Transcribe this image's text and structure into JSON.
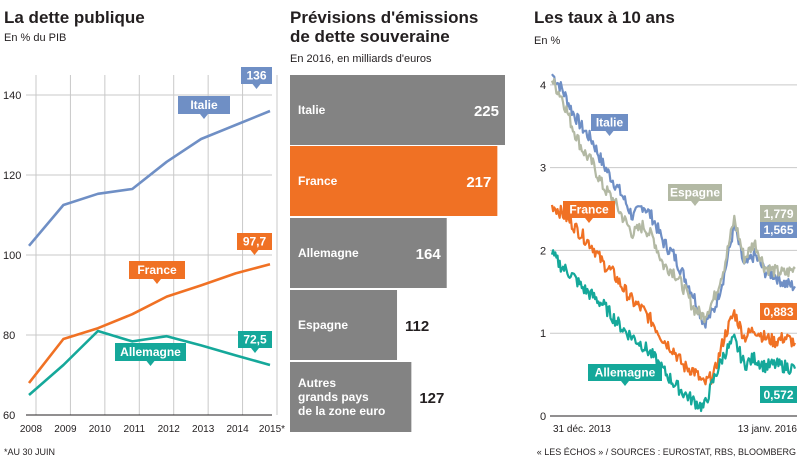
{
  "colors": {
    "italie": "#6f8fc5",
    "france": "#f07124",
    "allemagne": "#15a89a",
    "espagne": "#b3b9a4",
    "bar_gray": "#838383",
    "bar_orange": "#f07124",
    "grid": "#c9c9c9"
  },
  "chart_data": [
    {
      "type": "line",
      "title": "La dette publique",
      "subtitle": "En % du PIB",
      "categories": [
        "2008",
        "2009",
        "2010",
        "2011",
        "2012",
        "2013",
        "2014",
        "2015*"
      ],
      "ylim": [
        60,
        145
      ],
      "yticks": [
        60,
        80,
        100,
        120,
        140
      ],
      "series": [
        {
          "name": "Italie",
          "key": "italie",
          "values": [
            102.3,
            112.5,
            115.3,
            116.5,
            123.3,
            129.0,
            132.5,
            136.0
          ],
          "end_label": "136"
        },
        {
          "name": "France",
          "key": "france",
          "values": [
            68.0,
            79.0,
            81.7,
            85.2,
            89.6,
            92.4,
            95.4,
            97.7
          ],
          "end_label": "97,7"
        },
        {
          "name": "Allemagne",
          "key": "allemagne",
          "values": [
            65.0,
            72.5,
            81.0,
            78.4,
            79.7,
            77.4,
            74.9,
            72.5
          ],
          "end_label": "72,5"
        }
      ]
    },
    {
      "type": "bar",
      "title": "Prévisions d'émissions de dette souveraine",
      "title_lines": [
        "Prévisions d'émissions",
        "de dette souveraine"
      ],
      "subtitle": "En 2016, en milliards d'euros",
      "categories": [
        "Italie",
        "France",
        "Allemagne",
        "Espagne",
        "Autres grands pays de la zone euro"
      ],
      "category_lines": [
        [
          "Italie"
        ],
        [
          "France"
        ],
        [
          "Allemagne"
        ],
        [
          "Espagne"
        ],
        [
          "Autres",
          "grands pays",
          "de la zone euro"
        ]
      ],
      "values": [
        225,
        217,
        164,
        112,
        127
      ],
      "value_labels": [
        "225",
        "217",
        "164",
        "112",
        "127"
      ],
      "highlight": "France"
    },
    {
      "type": "line",
      "title": "Les taux à 10 ans",
      "subtitle": "En %",
      "x_start": "31 déc. 2013",
      "x_end": "13 janv. 2016",
      "ylim": [
        0,
        4.3
      ],
      "yticks": [
        0,
        1,
        2,
        3,
        4
      ],
      "series": [
        {
          "name": "Italie",
          "key": "italie",
          "end_label": "1,565",
          "values": [
            4.13,
            3.95,
            3.68,
            3.48,
            3.32,
            3.05,
            2.85,
            2.65,
            2.4,
            2.55,
            2.38,
            2.1,
            1.95,
            1.7,
            1.45,
            1.12,
            1.28,
            1.7,
            2.3,
            1.8,
            1.95,
            1.75,
            1.7,
            1.6,
            1.565
          ]
        },
        {
          "name": "Espagne",
          "key": "espagne",
          "end_label": "1,779",
          "values": [
            4.05,
            3.85,
            3.5,
            3.22,
            3.05,
            2.78,
            2.62,
            2.4,
            2.2,
            2.3,
            2.15,
            1.82,
            1.75,
            1.55,
            1.3,
            1.2,
            1.42,
            1.8,
            2.38,
            1.9,
            2.1,
            1.8,
            1.75,
            1.72,
            1.779
          ]
        },
        {
          "name": "France",
          "key": "france",
          "end_label": "0,883",
          "values": [
            2.55,
            2.45,
            2.32,
            2.18,
            2.05,
            1.85,
            1.73,
            1.55,
            1.38,
            1.28,
            1.12,
            0.92,
            0.8,
            0.6,
            0.55,
            0.38,
            0.5,
            0.95,
            1.25,
            0.95,
            1.05,
            0.95,
            0.9,
            0.95,
            0.883
          ]
        },
        {
          "name": "Allemagne",
          "key": "allemagne",
          "end_label": "0,572",
          "values": [
            1.95,
            1.8,
            1.7,
            1.55,
            1.45,
            1.35,
            1.2,
            1.05,
            0.95,
            0.85,
            0.72,
            0.55,
            0.4,
            0.28,
            0.18,
            0.1,
            0.45,
            0.75,
            0.92,
            0.62,
            0.7,
            0.6,
            0.62,
            0.6,
            0.572
          ]
        }
      ]
    }
  ],
  "footnote_left": "*AU 30 JUIN",
  "footnote_right": "« LES ÉCHOS » / SOURCES : EUROSTAT, RBS, BLOOMBERG"
}
